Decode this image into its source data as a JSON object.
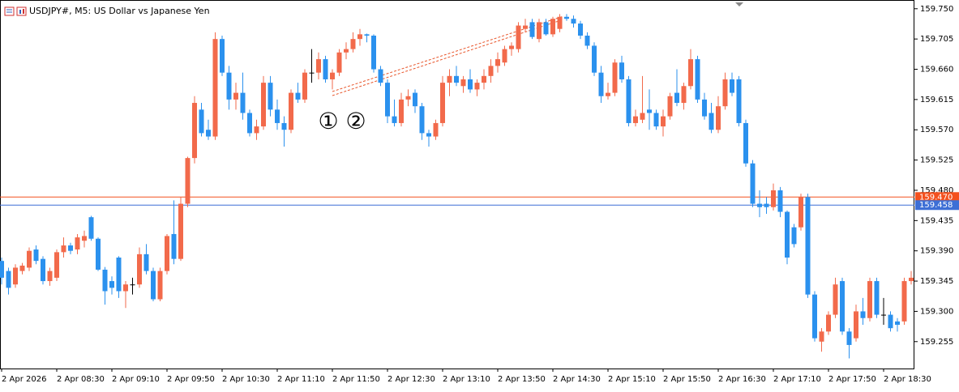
{
  "chart_data": {
    "type": "candlestick",
    "title": "USDJPY#, M5:  US Dollar vs Japanese Yen",
    "annotations": [
      "①",
      "②"
    ],
    "up_color": "#f26a4b",
    "down_color": "#2b91ee",
    "doji_color": "#000000",
    "ylim": [
      159.215,
      159.763
    ],
    "yticks": [
      {
        "value": 159.255,
        "label": "159.255"
      },
      {
        "value": 159.3,
        "label": "159.300"
      },
      159.345,
      {
        "value": 159.39,
        "label": "159.390"
      },
      159.435,
      {
        "value": 159.48,
        "label": "159.480"
      },
      159.525,
      {
        "value": 159.57,
        "label": "159.570"
      },
      159.615,
      {
        "value": 159.66,
        "label": "159.660"
      },
      159.705,
      {
        "value": 159.75,
        "label": "159.750"
      }
    ],
    "xticks": [
      "2 Apr 2026",
      "2 Apr 08:30",
      "2 Apr 09:10",
      "2 Apr 09:50",
      "2 Apr 10:30",
      "2 Apr 11:10",
      "2 Apr 11:50",
      "2 Apr 12:30",
      "2 Apr 13:10",
      "2 Apr 13:50",
      "2 Apr 14:30",
      "2 Apr 15:10",
      "2 Apr 15:50",
      "2 Apr 16:30",
      "2 Apr 17:10",
      "2 Apr 17:50",
      "2 Apr 18:30"
    ],
    "levels": [
      {
        "value": 159.47,
        "label": "159.470",
        "color": "#f4511e"
      },
      {
        "value": 159.458,
        "label": "159.458",
        "color": "#3d6fd6"
      }
    ],
    "candles": [
      [
        159.375,
        159.38,
        159.34,
        159.35
      ],
      [
        159.36,
        159.365,
        159.325,
        159.335
      ],
      [
        159.34,
        159.37,
        159.335,
        159.365
      ],
      [
        159.36,
        159.372,
        159.355,
        159.368
      ],
      [
        159.365,
        159.395,
        159.36,
        159.39
      ],
      [
        159.392,
        159.398,
        159.37,
        159.375
      ],
      [
        159.378,
        159.382,
        159.34,
        159.345
      ],
      [
        159.345,
        159.365,
        159.338,
        159.36
      ],
      [
        159.35,
        159.392,
        159.345,
        159.388
      ],
      [
        159.388,
        159.41,
        159.38,
        159.398
      ],
      [
        159.398,
        159.402,
        159.385,
        159.39
      ],
      [
        159.392,
        159.415,
        159.385,
        159.41
      ],
      [
        159.405,
        159.42,
        159.395,
        159.412
      ],
      [
        159.44,
        159.442,
        159.405,
        159.408
      ],
      [
        159.408,
        159.41,
        159.36,
        159.362
      ],
      [
        159.362,
        159.366,
        159.31,
        159.33
      ],
      [
        159.345,
        159.352,
        159.325,
        159.335
      ],
      [
        159.38,
        159.382,
        159.32,
        159.33
      ],
      [
        159.33,
        159.345,
        159.305,
        159.34
      ],
      [
        159.34,
        159.35,
        159.325,
        159.34
      ],
      [
        159.34,
        159.395,
        159.335,
        159.385
      ],
      [
        159.385,
        159.4,
        159.355,
        159.36
      ],
      [
        159.36,
        159.365,
        159.315,
        159.318
      ],
      [
        159.318,
        159.365,
        159.315,
        159.36
      ],
      [
        159.36,
        159.415,
        159.355,
        159.412
      ],
      [
        159.415,
        159.465,
        159.37,
        159.378
      ],
      [
        159.378,
        159.47,
        159.375,
        159.46
      ],
      [
        159.46,
        159.53,
        159.455,
        159.528
      ],
      [
        159.528,
        159.62,
        159.52,
        159.61
      ],
      [
        159.6,
        159.61,
        159.56,
        159.565
      ],
      [
        159.57,
        159.585,
        159.555,
        159.56
      ],
      [
        159.56,
        159.715,
        159.555,
        159.705
      ],
      [
        159.705,
        159.71,
        159.65,
        159.655
      ],
      [
        159.655,
        159.665,
        159.6,
        159.615
      ],
      [
        159.615,
        159.64,
        159.6,
        159.625
      ],
      [
        159.625,
        159.655,
        159.585,
        159.595
      ],
      [
        159.595,
        159.6,
        159.56,
        159.565
      ],
      [
        159.565,
        159.585,
        159.555,
        159.575
      ],
      [
        159.575,
        159.65,
        159.57,
        159.64
      ],
      [
        159.64,
        159.65,
        159.59,
        159.6
      ],
      [
        159.6,
        159.615,
        159.57,
        159.58
      ],
      [
        159.58,
        159.59,
        159.545,
        159.57
      ],
      [
        159.57,
        159.63,
        159.565,
        159.625
      ],
      [
        159.625,
        159.64,
        159.61,
        159.615
      ],
      [
        159.615,
        159.66,
        159.61,
        159.655
      ],
      [
        159.655,
        159.69,
        159.64,
        159.655
      ],
      [
        159.655,
        159.685,
        159.645,
        159.675
      ],
      [
        159.675,
        159.68,
        159.64,
        159.645
      ],
      [
        159.645,
        159.66,
        159.63,
        159.655
      ],
      [
        159.655,
        159.69,
        159.65,
        159.685
      ],
      [
        159.685,
        159.7,
        159.675,
        159.69
      ],
      [
        159.69,
        159.715,
        159.685,
        159.705
      ],
      [
        159.705,
        159.72,
        159.695,
        159.712
      ],
      [
        159.712,
        159.713,
        159.7,
        159.71
      ],
      [
        159.71,
        159.712,
        159.655,
        159.66
      ],
      [
        159.66,
        159.665,
        159.635,
        159.64
      ],
      [
        159.64,
        159.645,
        159.58,
        159.59
      ],
      [
        159.59,
        159.615,
        159.575,
        159.58
      ],
      [
        159.58,
        159.625,
        159.575,
        159.615
      ],
      [
        159.615,
        159.63,
        159.605,
        159.62
      ],
      [
        159.625,
        159.63,
        159.595,
        159.605
      ],
      [
        159.605,
        159.61,
        159.555,
        159.565
      ],
      [
        159.565,
        159.57,
        159.545,
        159.56
      ],
      [
        159.56,
        159.585,
        159.555,
        159.58
      ],
      [
        159.58,
        159.65,
        159.575,
        159.64
      ],
      [
        159.64,
        159.66,
        159.62,
        159.65
      ],
      [
        159.65,
        159.665,
        159.635,
        159.64
      ],
      [
        159.635,
        159.65,
        159.625,
        159.645
      ],
      [
        159.645,
        159.66,
        159.625,
        159.63
      ],
      [
        159.63,
        159.645,
        159.62,
        159.64
      ],
      [
        159.64,
        159.66,
        159.63,
        159.65
      ],
      [
        159.65,
        159.675,
        159.64,
        159.665
      ],
      [
        159.665,
        159.685,
        159.655,
        159.675
      ],
      [
        159.67,
        159.695,
        159.665,
        159.69
      ],
      [
        159.69,
        159.7,
        159.68,
        159.695
      ],
      [
        159.69,
        159.73,
        159.685,
        159.725
      ],
      [
        159.72,
        159.735,
        159.715,
        159.725
      ],
      [
        159.73,
        159.735,
        159.705,
        159.708
      ],
      [
        159.705,
        159.735,
        159.7,
        159.73
      ],
      [
        159.73,
        159.735,
        159.71,
        159.712
      ],
      [
        159.712,
        159.738,
        159.708,
        159.735
      ],
      [
        159.72,
        159.742,
        159.715,
        159.738
      ],
      [
        159.738,
        159.742,
        159.732,
        159.735
      ],
      [
        159.735,
        159.74,
        159.722,
        159.728
      ],
      [
        159.728,
        159.732,
        159.705,
        159.71
      ],
      [
        159.71,
        159.715,
        159.69,
        159.695
      ],
      [
        159.695,
        159.7,
        159.65,
        159.655
      ],
      [
        159.655,
        159.665,
        159.61,
        159.62
      ],
      [
        159.62,
        159.64,
        159.615,
        159.625
      ],
      [
        159.625,
        159.675,
        159.62,
        159.67
      ],
      [
        159.67,
        159.68,
        159.64,
        159.645
      ],
      [
        159.645,
        159.65,
        159.575,
        159.58
      ],
      [
        159.58,
        159.6,
        159.575,
        159.59
      ],
      [
        159.585,
        159.65,
        159.58,
        159.595
      ],
      [
        159.6,
        159.63,
        159.57,
        159.595
      ],
      [
        159.595,
        159.6,
        159.57,
        159.575
      ],
      [
        159.575,
        159.6,
        159.56,
        159.59
      ],
      [
        159.59,
        159.625,
        159.585,
        159.62
      ],
      [
        159.625,
        159.66,
        159.605,
        159.61
      ],
      [
        159.61,
        159.64,
        159.6,
        159.635
      ],
      [
        159.635,
        159.69,
        159.63,
        159.675
      ],
      [
        159.675,
        159.68,
        159.61,
        159.615
      ],
      [
        159.615,
        159.625,
        159.585,
        159.59
      ],
      [
        159.595,
        159.61,
        159.565,
        159.57
      ],
      [
        159.57,
        159.62,
        159.565,
        159.605
      ],
      [
        159.605,
        159.655,
        159.6,
        159.645
      ],
      [
        159.645,
        159.655,
        159.62,
        159.625
      ],
      [
        159.645,
        159.65,
        159.575,
        159.58
      ],
      [
        159.58,
        159.585,
        159.515,
        159.52
      ],
      [
        159.52,
        159.525,
        159.455,
        159.46
      ],
      [
        159.46,
        159.48,
        159.44,
        159.455
      ],
      [
        159.46,
        159.47,
        159.445,
        159.455
      ],
      [
        159.455,
        159.49,
        159.45,
        159.48
      ],
      [
        159.48,
        159.485,
        159.44,
        159.448
      ],
      [
        159.448,
        159.45,
        159.37,
        159.38
      ],
      [
        159.425,
        159.43,
        159.395,
        159.4
      ],
      [
        159.425,
        159.475,
        159.42,
        159.47
      ],
      [
        159.47,
        159.475,
        159.32,
        159.325
      ],
      [
        159.325,
        159.33,
        159.255,
        159.26
      ],
      [
        159.255,
        159.275,
        159.24,
        159.27
      ],
      [
        159.27,
        159.3,
        159.265,
        159.295
      ],
      [
        159.295,
        159.35,
        159.29,
        159.34
      ],
      [
        159.345,
        159.35,
        159.265,
        159.27
      ],
      [
        159.27,
        159.275,
        159.23,
        159.25
      ],
      [
        159.26,
        159.31,
        159.255,
        159.3
      ],
      [
        159.3,
        159.32,
        159.28,
        159.29
      ],
      [
        159.29,
        159.35,
        159.285,
        159.345
      ],
      [
        159.345,
        159.35,
        159.29,
        159.295
      ],
      [
        159.295,
        159.32,
        159.28,
        159.295
      ],
      [
        159.295,
        159.3,
        159.27,
        159.275
      ],
      [
        159.285,
        159.29,
        159.27,
        159.28
      ],
      [
        159.285,
        159.35,
        159.28,
        159.345
      ],
      [
        159.345,
        159.36,
        159.34,
        159.35
      ]
    ]
  }
}
